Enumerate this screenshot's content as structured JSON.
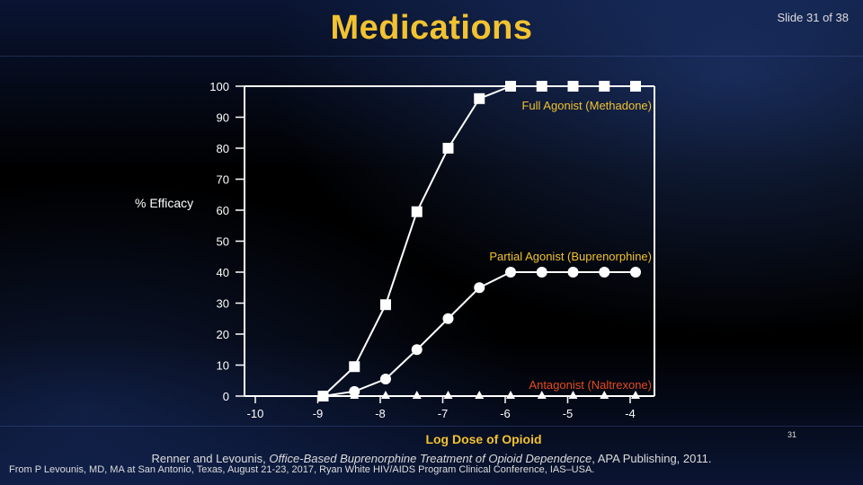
{
  "slide": {
    "title": "Medications",
    "counter": "Slide 31 of 38",
    "number": "31",
    "citation_line1_pre": "Renner and Levounis, ",
    "citation_line1_italic": "Office-Based Buprenorphine Treatment of Opioid Dependence",
    "citation_line1_post": ", APA Publishing, 2011.",
    "citation_line2": "From P Levounis, MD, MA at San Antonio, Texas, August 21-23, 2017, Ryan White HIV/AIDS Program Clinical Conference, IAS–USA."
  },
  "colors": {
    "title": "#f2c230",
    "full_agonist_label": "#f2c230",
    "partial_agonist_label": "#f2c230",
    "antagonist_label": "#e64b1e",
    "markers": "#ffffff"
  },
  "chart_data": {
    "type": "line",
    "xlabel": "Log Dose of Opioid",
    "ylabel": "% Efficacy",
    "xlim": [
      -10,
      -4
    ],
    "ylim": [
      0,
      100
    ],
    "x_ticks": [
      -10,
      -9,
      -8,
      -7,
      -6,
      -5,
      -4
    ],
    "y_ticks": [
      0,
      10,
      20,
      30,
      40,
      50,
      60,
      70,
      80,
      90,
      100
    ],
    "series": [
      {
        "name": "Full Agonist (Methadone)",
        "marker": "square",
        "x": [
          -9,
          -8.5,
          -8,
          -7.5,
          -7,
          -6.5,
          -6,
          -5.5,
          -5,
          -4.5,
          -4
        ],
        "y": [
          0,
          9.5,
          29.5,
          59.5,
          80,
          96,
          100,
          100,
          100,
          100,
          100
        ]
      },
      {
        "name": "Partial Agonist (Buprenorphine)",
        "marker": "circle",
        "x": [
          -9,
          -8.5,
          -8,
          -7.5,
          -7,
          -6.5,
          -6,
          -5.5,
          -5,
          -4.5,
          -4
        ],
        "y": [
          0,
          1.5,
          5.5,
          15,
          25,
          35,
          40,
          40,
          40,
          40,
          40
        ]
      },
      {
        "name": "Antagonist (Naltrexone)",
        "marker": "triangle",
        "x": [
          -9,
          -8.5,
          -8,
          -7.5,
          -7,
          -6.5,
          -6,
          -5.5,
          -5,
          -4.5,
          -4
        ],
        "y": [
          0,
          0,
          0,
          0,
          0,
          0,
          0,
          0,
          0,
          0,
          0
        ]
      }
    ]
  }
}
